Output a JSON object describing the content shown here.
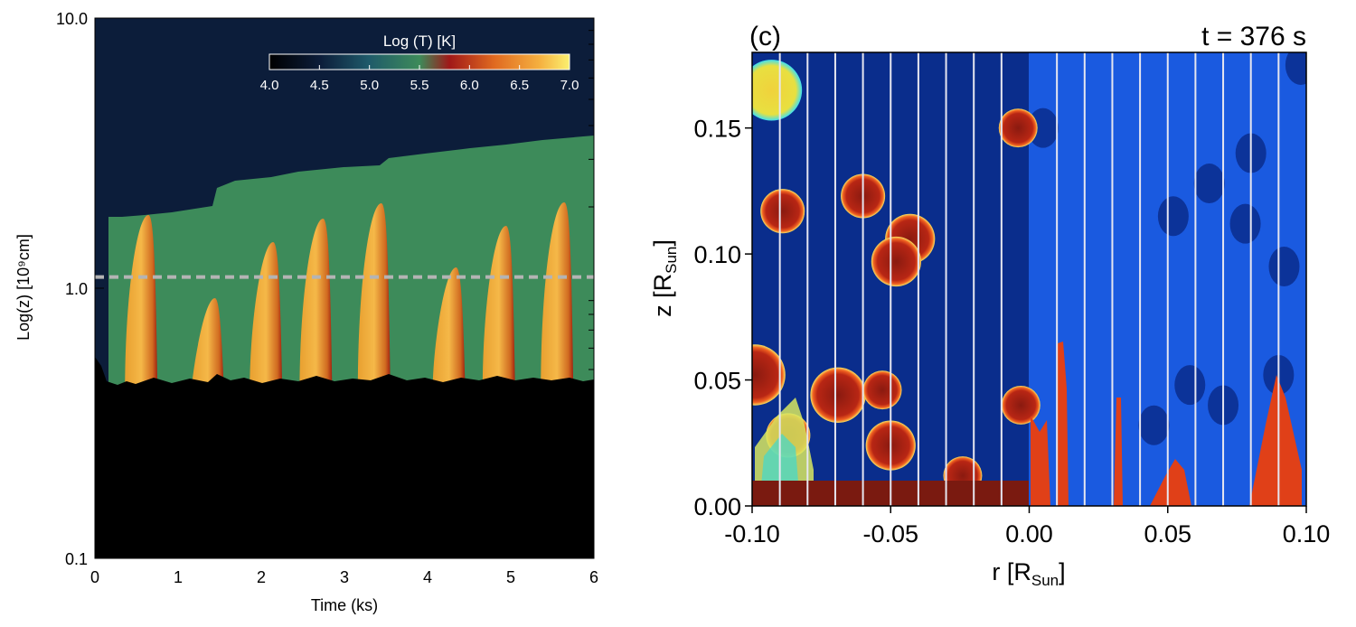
{
  "chart_data": [
    {
      "type": "heatmap",
      "xlabel": "Time (ks)",
      "ylabel": "Log(z) [10⁹cm]",
      "xlim": [
        0,
        6
      ],
      "ylim": [
        0.1,
        10.0
      ],
      "y_scale": "log",
      "x_ticks": [
        "0",
        "1",
        "2",
        "3",
        "4",
        "5",
        "6"
      ],
      "y_ticks": [
        {
          "value": 10.0,
          "label": "10.0"
        },
        {
          "value": 1.0,
          "label": "1.0"
        },
        {
          "value": 0.1,
          "label": "0.1"
        }
      ],
      "colorbar": {
        "title": "Log (T) [K]",
        "min": 4.0,
        "max": 7.0,
        "ticks": [
          "4.0",
          "4.5",
          "5.0",
          "5.5",
          "6.0",
          "6.5",
          "7.0"
        ],
        "placement": "top-right"
      },
      "reference_line": {
        "y": 1.1,
        "style": "dashed",
        "color": "#b4b4b4"
      },
      "surface_z": 0.43,
      "hot_event_times": [
        0.6,
        1.4,
        2.1,
        2.7,
        3.4,
        4.3,
        4.9,
        5.6
      ],
      "colors": {
        "corona_cold": "#0c1d3a",
        "transition": "#3d8b5a",
        "hot": "#f0a83a",
        "chromosphere": "#000000"
      }
    },
    {
      "type": "heatmap",
      "panel_label": "(c)",
      "annotation": "t = 376 s",
      "xlabel": "r [R",
      "xlabel_sub": "Sun",
      "xlabel_close": "]",
      "ylabel": "z [R",
      "ylabel_sub": "Sun",
      "ylabel_close": "]",
      "xlim": [
        -0.1,
        0.1
      ],
      "ylim": [
        0.0,
        0.18
      ],
      "x_ticks": [
        "-0.10",
        "-0.05",
        "0.00",
        "0.05",
        "0.10"
      ],
      "y_ticks": [
        "0.00",
        "0.05",
        "0.10",
        "0.15"
      ],
      "vertical_lines_r": [
        -0.09,
        -0.08,
        -0.07,
        -0.06,
        -0.05,
        -0.04,
        -0.03,
        -0.02,
        -0.01,
        0.01,
        0.02,
        0.03,
        0.04,
        0.05,
        0.06,
        0.07,
        0.08,
        0.09
      ],
      "blobs_left": [
        {
          "r": -0.093,
          "z": 0.165,
          "rad": 0.011,
          "kind": "yellow"
        },
        {
          "r": -0.089,
          "z": 0.117,
          "rad": 0.008,
          "kind": "red"
        },
        {
          "r": -0.06,
          "z": 0.123,
          "rad": 0.008,
          "kind": "red"
        },
        {
          "r": -0.043,
          "z": 0.106,
          "rad": 0.009,
          "kind": "red"
        },
        {
          "r": -0.048,
          "z": 0.097,
          "rad": 0.009,
          "kind": "red"
        },
        {
          "r": -0.004,
          "z": 0.15,
          "rad": 0.007,
          "kind": "red"
        },
        {
          "r": -0.099,
          "z": 0.052,
          "rad": 0.011,
          "kind": "red"
        },
        {
          "r": -0.069,
          "z": 0.044,
          "rad": 0.01,
          "kind": "red"
        },
        {
          "r": -0.053,
          "z": 0.046,
          "rad": 0.007,
          "kind": "red"
        },
        {
          "r": -0.087,
          "z": 0.028,
          "rad": 0.008,
          "kind": "red"
        },
        {
          "r": -0.05,
          "z": 0.024,
          "rad": 0.009,
          "kind": "red"
        },
        {
          "r": -0.024,
          "z": 0.012,
          "rad": 0.007,
          "kind": "red"
        },
        {
          "r": -0.003,
          "z": 0.04,
          "rad": 0.007,
          "kind": "red"
        }
      ],
      "colors": {
        "left_bg": "#0a2d8c",
        "right_bg": "#1a5ae0",
        "blob": "#c42010",
        "blob_hot": "#f0d23c",
        "floor": "#7a1a10"
      }
    }
  ]
}
